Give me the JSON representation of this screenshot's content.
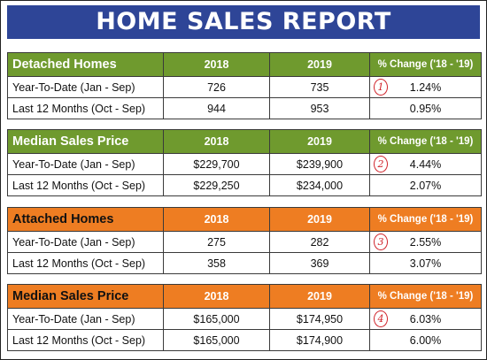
{
  "title": "HOME SALES REPORT",
  "sections": [
    {
      "name": "Detached Homes",
      "col1": "2018",
      "col2": "2019",
      "col3": "% Change ('18 - '19)",
      "marker": "1",
      "rows": [
        {
          "label": "Year-To-Date (Jan - Sep)",
          "v2018": "726",
          "v2019": "735",
          "change": "1.24%"
        },
        {
          "label": "Last 12 Months (Oct - Sep)",
          "v2018": "944",
          "v2019": "953",
          "change": "0.95%"
        }
      ]
    },
    {
      "name": "Median Sales Price",
      "col1": "2018",
      "col2": "2019",
      "col3": "% Change ('18 - '19)",
      "marker": "2",
      "rows": [
        {
          "label": "Year-To-Date (Jan - Sep)",
          "v2018": "$229,700",
          "v2019": "$239,900",
          "change": "4.44%"
        },
        {
          "label": "Last 12 Months (Oct - Sep)",
          "v2018": "$229,250",
          "v2019": "$234,000",
          "change": "2.07%"
        }
      ]
    },
    {
      "name": "Attached Homes",
      "col1": "2018",
      "col2": "2019",
      "col3": "% Change ('18 - '19)",
      "marker": "3",
      "rows": [
        {
          "label": "Year-To-Date (Jan - Sep)",
          "v2018": "275",
          "v2019": "282",
          "change": "2.55%"
        },
        {
          "label": "Last 12 Months (Oct - Sep)",
          "v2018": "358",
          "v2019": "369",
          "change": "3.07%"
        }
      ]
    },
    {
      "name": "Median Sales Price",
      "col1": "2018",
      "col2": "2019",
      "col3": "% Change ('18 - '19)",
      "marker": "4",
      "rows": [
        {
          "label": "Year-To-Date (Jan - Sep)",
          "v2018": "$165,000",
          "v2019": "$174,950",
          "change": "6.03%"
        },
        {
          "label": "Last 12 Months (Oct - Sep)",
          "v2018": "$165,000",
          "v2019": "$174,900",
          "change": "6.00%"
        }
      ]
    }
  ],
  "colors": {
    "title_bg": "#2e4597",
    "detached_header": "#6f9a2e",
    "attached_header": "#ee7d22",
    "marker": "#d0232a"
  }
}
